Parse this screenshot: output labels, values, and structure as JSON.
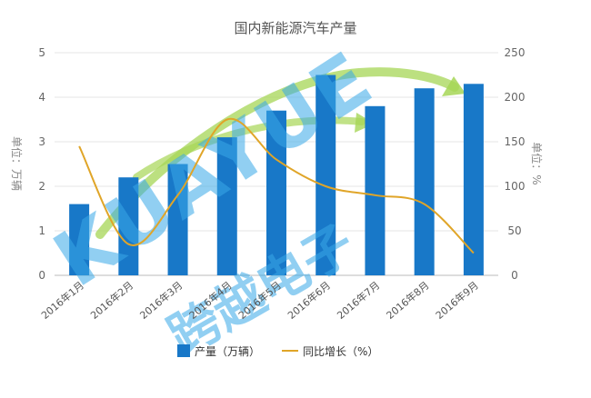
{
  "chart_data": {
    "type": "bar",
    "title": "国内新能源汽车产量",
    "categories": [
      "2016年1月",
      "2016年2月",
      "2016年3月",
      "2016年4月",
      "2016年5月",
      "2016年6月",
      "2016年7月",
      "2016年8月",
      "2016年9月"
    ],
    "series": [
      {
        "name": "产量（万辆）",
        "type": "bar",
        "axis": "left",
        "values": [
          1.6,
          2.2,
          2.5,
          3.1,
          3.7,
          4.5,
          3.8,
          4.2,
          4.3
        ]
      },
      {
        "name": "同比增长（%）",
        "type": "line",
        "axis": "right",
        "values": [
          145,
          35,
          90,
          175,
          130,
          100,
          90,
          80,
          25
        ]
      }
    ],
    "y_left": {
      "label": "单位：万辆",
      "range": [
        0,
        5
      ],
      "ticks": [
        "0",
        "1",
        "2",
        "3",
        "4",
        "5"
      ]
    },
    "y_right": {
      "label": "单位：%",
      "range": [
        0,
        250
      ],
      "ticks": [
        "0",
        "50",
        "100",
        "150",
        "200",
        "250"
      ]
    },
    "grid": true,
    "legend": "bottom",
    "colors": {
      "bar": "#1878c8",
      "line": "#e0a528",
      "arrow": "#a6d656"
    }
  },
  "watermark": {
    "latin": "KUAYUE",
    "chinese": "跨越电子"
  }
}
